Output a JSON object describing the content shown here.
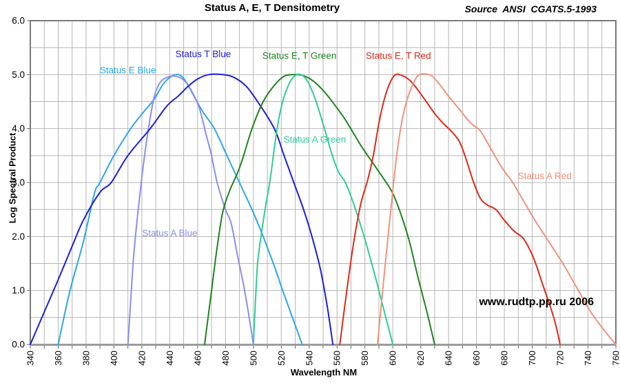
{
  "title": "Status A, E, T Densitometry",
  "source_note": "Source  ANSI  CGATS.5-1993",
  "watermark": "www.rudtp.pp.ru 2006",
  "axes": {
    "x": {
      "title": "Wavelength NM",
      "min": 340,
      "max": 760,
      "grid_step": 10,
      "label_step": 20,
      "tick_labels": [
        "340",
        "360",
        "380",
        "400",
        "420",
        "440",
        "460",
        "480",
        "500",
        "520",
        "540",
        "560",
        "580",
        "600",
        "620",
        "640",
        "660",
        "680",
        "700",
        "720",
        "740",
        "760"
      ]
    },
    "y": {
      "title": "Log Spectral Product",
      "min": 0,
      "max": 6,
      "grid_step": 0.5,
      "label_step": 1,
      "tick_labels": [
        "0.0",
        "1.0",
        "2.0",
        "3.0",
        "4.0",
        "5.0",
        "6.0"
      ]
    }
  },
  "style": {
    "grid_color": "#b4b4b4",
    "border_color": "#787878",
    "axis_band_color": "#9c9c9c",
    "tick_color": "#606060",
    "text_color": "#000000",
    "background": "#ffffff"
  },
  "chart_data": {
    "type": "line",
    "title": "Status A, E, T Densitometry",
    "xlabel": "Wavelength NM",
    "ylabel": "Log Spectral Product",
    "xlim": [
      340,
      760
    ],
    "ylim": [
      0,
      6
    ],
    "grid": true,
    "legend_position": "inline-labels",
    "series": [
      {
        "name": "Status E Blue",
        "color": "#2aa6e8",
        "label_pos": [
          410,
          5.08
        ],
        "points": [
          [
            360,
            0
          ],
          [
            368,
            0.95
          ],
          [
            378,
            1.9
          ],
          [
            386,
            2.8
          ],
          [
            390,
            3.0
          ],
          [
            400,
            3.5
          ],
          [
            412,
            4.0
          ],
          [
            421,
            4.3
          ],
          [
            429,
            4.55
          ],
          [
            436,
            4.85
          ],
          [
            444,
            5.0
          ],
          [
            450,
            4.93
          ],
          [
            457,
            4.62
          ],
          [
            464,
            4.3
          ],
          [
            472,
            4.0
          ],
          [
            481,
            3.5
          ],
          [
            490,
            3.0
          ],
          [
            499,
            2.5
          ],
          [
            507,
            2.0
          ],
          [
            515,
            1.45
          ],
          [
            521,
            1.0
          ],
          [
            528,
            0.5
          ],
          [
            535,
            0
          ]
        ]
      },
      {
        "name": "Status A Blue",
        "color": "#8c8cee",
        "label_pos": [
          440,
          2.06
        ],
        "points": [
          [
            410,
            0
          ],
          [
            412,
            0.8
          ],
          [
            414,
            1.6
          ],
          [
            417,
            2.4
          ],
          [
            420,
            3.1
          ],
          [
            423,
            3.7
          ],
          [
            426,
            4.2
          ],
          [
            429,
            4.6
          ],
          [
            433,
            4.85
          ],
          [
            438,
            4.95
          ],
          [
            444,
            4.97
          ],
          [
            450,
            4.9
          ],
          [
            455,
            4.73
          ],
          [
            461,
            4.4
          ],
          [
            466,
            3.9
          ],
          [
            470,
            3.5
          ],
          [
            474,
            3.0
          ],
          [
            480,
            2.5
          ],
          [
            484,
            2.25
          ],
          [
            489,
            1.6
          ],
          [
            493,
            1.1
          ],
          [
            497,
            0.5
          ],
          [
            500,
            0
          ]
        ]
      },
      {
        "name": "Status T Blue",
        "color": "#1c1cdd",
        "label_pos": [
          464,
          5.38
        ],
        "points": [
          [
            340,
            0
          ],
          [
            350,
            0.6
          ],
          [
            360,
            1.2
          ],
          [
            370,
            1.82
          ],
          [
            378,
            2.3
          ],
          [
            390,
            2.82
          ],
          [
            398,
            3.0
          ],
          [
            410,
            3.5
          ],
          [
            426,
            4.0
          ],
          [
            438,
            4.42
          ],
          [
            446,
            4.6
          ],
          [
            453,
            4.78
          ],
          [
            460,
            4.92
          ],
          [
            468,
            5.0
          ],
          [
            478,
            5.0
          ],
          [
            486,
            4.95
          ],
          [
            495,
            4.78
          ],
          [
            503,
            4.5
          ],
          [
            515,
            4.0
          ],
          [
            522,
            3.5
          ],
          [
            529,
            3.0
          ],
          [
            536,
            2.5
          ],
          [
            542,
            2.0
          ],
          [
            548,
            1.4
          ],
          [
            553,
            0.7
          ],
          [
            557,
            0
          ]
        ]
      },
      {
        "name": "Status E, T Green",
        "color": "#1e821e",
        "label_pos": [
          533,
          5.35
        ],
        "points": [
          [
            465,
            0
          ],
          [
            470,
            1.0
          ],
          [
            474,
            1.8
          ],
          [
            478,
            2.45
          ],
          [
            483,
            2.85
          ],
          [
            489,
            3.2
          ],
          [
            493,
            3.5
          ],
          [
            499,
            4.0
          ],
          [
            507,
            4.5
          ],
          [
            515,
            4.8
          ],
          [
            522,
            4.97
          ],
          [
            529,
            5.0
          ],
          [
            536,
            4.98
          ],
          [
            543,
            4.88
          ],
          [
            551,
            4.68
          ],
          [
            558,
            4.45
          ],
          [
            565,
            4.2
          ],
          [
            571,
            3.95
          ],
          [
            578,
            3.65
          ],
          [
            586,
            3.35
          ],
          [
            594,
            3.05
          ],
          [
            600,
            2.8
          ],
          [
            606,
            2.4
          ],
          [
            612,
            1.9
          ],
          [
            618,
            1.25
          ],
          [
            624,
            0.65
          ],
          [
            630,
            0
          ]
        ]
      },
      {
        "name": "Status A Green",
        "color": "#2ecc96",
        "label_pos": [
          544,
          3.8
        ],
        "points": [
          [
            500,
            0
          ],
          [
            501.5,
            0.8
          ],
          [
            503,
            1.5
          ],
          [
            506,
            2.1
          ],
          [
            509,
            2.6
          ],
          [
            512,
            3.05
          ],
          [
            517,
            4.0
          ],
          [
            521,
            4.5
          ],
          [
            526,
            4.85
          ],
          [
            531,
            5.0
          ],
          [
            536,
            4.97
          ],
          [
            540,
            4.82
          ],
          [
            545,
            4.5
          ],
          [
            551,
            4.0
          ],
          [
            556,
            3.55
          ],
          [
            561,
            3.2
          ],
          [
            566,
            3.0
          ],
          [
            572,
            2.6
          ],
          [
            580,
            1.95
          ],
          [
            588,
            1.2
          ],
          [
            594,
            0.6
          ],
          [
            600,
            0
          ]
        ]
      },
      {
        "name": "Status E, T Red",
        "color": "#e02818",
        "label_pos": [
          604,
          5.35
        ],
        "points": [
          [
            562,
            0
          ],
          [
            567,
            1.0
          ],
          [
            572,
            1.9
          ],
          [
            577,
            2.6
          ],
          [
            582,
            3.05
          ],
          [
            586,
            3.5
          ],
          [
            590,
            4.1
          ],
          [
            594,
            4.55
          ],
          [
            598,
            4.85
          ],
          [
            602,
            5.0
          ],
          [
            607,
            4.98
          ],
          [
            612,
            4.9
          ],
          [
            617,
            4.75
          ],
          [
            624,
            4.5
          ],
          [
            630,
            4.28
          ],
          [
            636,
            4.1
          ],
          [
            642,
            3.95
          ],
          [
            648,
            3.75
          ],
          [
            653,
            3.4
          ],
          [
            658,
            3.0
          ],
          [
            663,
            2.7
          ],
          [
            668,
            2.58
          ],
          [
            674,
            2.5
          ],
          [
            680,
            2.3
          ],
          [
            687,
            2.1
          ],
          [
            694,
            1.95
          ],
          [
            701,
            1.6
          ],
          [
            707,
            1.15
          ],
          [
            713,
            0.7
          ],
          [
            717,
            0.35
          ],
          [
            720,
            0
          ]
        ]
      },
      {
        "name": "Status A Red",
        "color": "#f4907a",
        "label_pos": [
          709,
          3.12
        ],
        "points": [
          [
            589,
            0
          ],
          [
            592,
            0.8
          ],
          [
            595,
            1.6
          ],
          [
            599,
            2.6
          ],
          [
            603,
            3.55
          ],
          [
            607,
            4.2
          ],
          [
            611,
            4.6
          ],
          [
            615,
            4.85
          ],
          [
            619,
            5.0
          ],
          [
            626,
            5.0
          ],
          [
            631,
            4.9
          ],
          [
            640,
            4.6
          ],
          [
            648,
            4.35
          ],
          [
            656,
            4.1
          ],
          [
            663,
            3.95
          ],
          [
            672,
            3.55
          ],
          [
            679,
            3.25
          ],
          [
            686,
            3.0
          ],
          [
            694,
            2.65
          ],
          [
            702,
            2.3
          ],
          [
            712,
            1.9
          ],
          [
            722,
            1.5
          ],
          [
            732,
            1.05
          ],
          [
            742,
            0.6
          ],
          [
            752,
            0.25
          ],
          [
            760,
            0
          ]
        ]
      }
    ]
  }
}
